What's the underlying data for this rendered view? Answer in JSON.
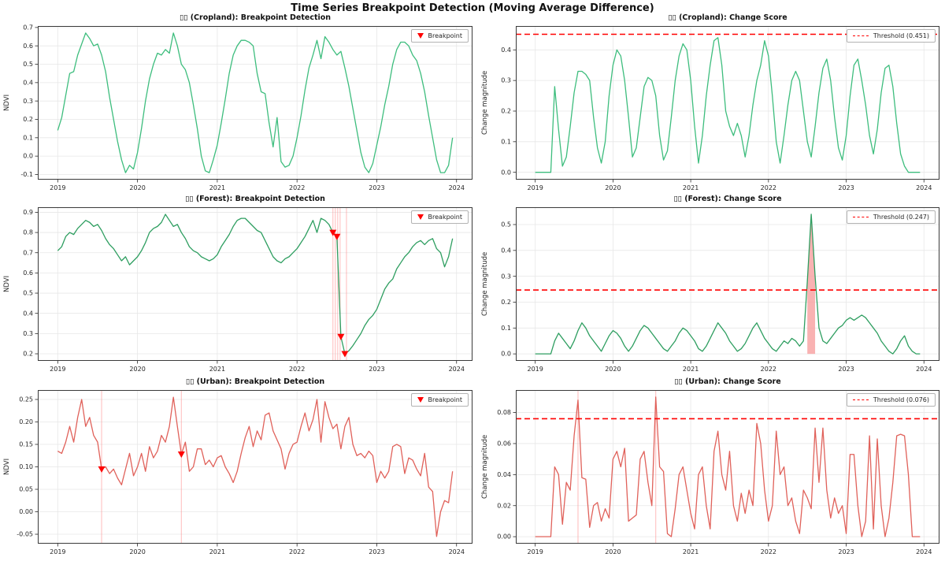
{
  "figure": {
    "suptitle": "Time Series Breakpoint Detection (Moving Average Difference)"
  },
  "colors": {
    "cropland_line": "#3dbd7d",
    "forest_line": "#2e9e60",
    "urban_line": "#e0615a",
    "threshold": "#ff0000",
    "breakpoint_marker": "#ff0000",
    "event_vline": "#ff9090",
    "fill_above": "#f79f9f",
    "grid": "#e7e7e7",
    "spine": "#3a3a3a",
    "tick_text": "#262626"
  },
  "chart_data": [
    {
      "id": "cropland-breakpoint-detection",
      "type": "line",
      "title": "▯▯ (Cropland): Breakpoint Detection",
      "ylabel": "NDVI",
      "legend_label": "Breakpoint",
      "legend_type": "breakpoint",
      "color_key": "cropland_line",
      "xlim": [
        2018.75,
        2024.2
      ],
      "ylim": [
        -0.128,
        0.708
      ],
      "xtick_vals": [
        2019,
        2020,
        2021,
        2022,
        2023,
        2024
      ],
      "xtick_labels": [
        "2019",
        "2020",
        "2021",
        "2022",
        "2023",
        "2024"
      ],
      "ytick_vals": [
        -0.1,
        0.0,
        0.1,
        0.2,
        0.3,
        0.4,
        0.5,
        0.6,
        0.7
      ],
      "ytick_labels": [
        "-0.1",
        "0.0",
        "0.1",
        "0.2",
        "0.3",
        "0.4",
        "0.5",
        "0.6",
        "0.7"
      ],
      "x_start": 2019.0,
      "x_step": 0.05,
      "values": [
        0.14,
        0.21,
        0.33,
        0.45,
        0.46,
        0.55,
        0.61,
        0.67,
        0.64,
        0.6,
        0.61,
        0.55,
        0.46,
        0.32,
        0.2,
        0.08,
        -0.02,
        -0.09,
        -0.05,
        -0.07,
        0.02,
        0.15,
        0.3,
        0.42,
        0.5,
        0.56,
        0.55,
        0.58,
        0.56,
        0.67,
        0.6,
        0.5,
        0.47,
        0.4,
        0.28,
        0.15,
        0.0,
        -0.08,
        -0.09,
        -0.02,
        0.06,
        0.18,
        0.31,
        0.45,
        0.55,
        0.6,
        0.63,
        0.63,
        0.62,
        0.6,
        0.45,
        0.35,
        0.34,
        0.18,
        0.05,
        0.21,
        -0.03,
        -0.06,
        -0.05,
        0.0,
        0.1,
        0.22,
        0.36,
        0.48,
        0.55,
        0.63,
        0.53,
        0.65,
        0.62,
        0.58,
        0.55,
        0.57,
        0.48,
        0.38,
        0.26,
        0.14,
        0.02,
        -0.06,
        -0.09,
        -0.04,
        0.06,
        0.16,
        0.28,
        0.38,
        0.5,
        0.58,
        0.62,
        0.62,
        0.6,
        0.55,
        0.52,
        0.45,
        0.35,
        0.22,
        0.1,
        -0.02,
        -0.09,
        -0.09,
        -0.05,
        0.1
      ],
      "breakpoints": [],
      "vlines": []
    },
    {
      "id": "cropland-change-score",
      "type": "line",
      "title": "▯▯ (Cropland): Change Score",
      "ylabel": "Change magnitude",
      "legend_label": "Threshold (0.451)",
      "legend_type": "threshold",
      "color_key": "cropland_line",
      "threshold": 0.451,
      "xlim": [
        2018.75,
        2024.2
      ],
      "ylim": [
        -0.024,
        0.478
      ],
      "xtick_vals": [
        2019,
        2020,
        2021,
        2022,
        2023,
        2024
      ],
      "xtick_labels": [
        "2019",
        "2020",
        "2021",
        "2022",
        "2023",
        "2024"
      ],
      "ytick_vals": [
        0.0,
        0.1,
        0.2,
        0.3,
        0.4
      ],
      "ytick_labels": [
        "0.0",
        "0.1",
        "0.2",
        "0.3",
        "0.4"
      ],
      "x_start": 2019.0,
      "x_step": 0.05,
      "values": [
        0,
        0,
        0,
        0,
        0,
        0.28,
        0.14,
        0.02,
        0.05,
        0.15,
        0.26,
        0.33,
        0.33,
        0.32,
        0.3,
        0.18,
        0.08,
        0.03,
        0.1,
        0.25,
        0.35,
        0.4,
        0.38,
        0.3,
        0.18,
        0.05,
        0.08,
        0.18,
        0.28,
        0.31,
        0.3,
        0.25,
        0.12,
        0.04,
        0.07,
        0.18,
        0.3,
        0.38,
        0.42,
        0.4,
        0.3,
        0.15,
        0.03,
        0.12,
        0.25,
        0.35,
        0.43,
        0.44,
        0.35,
        0.2,
        0.15,
        0.12,
        0.16,
        0.12,
        0.05,
        0.12,
        0.22,
        0.3,
        0.35,
        0.43,
        0.38,
        0.25,
        0.1,
        0.03,
        0.12,
        0.22,
        0.3,
        0.33,
        0.3,
        0.2,
        0.1,
        0.05,
        0.15,
        0.26,
        0.34,
        0.37,
        0.3,
        0.18,
        0.08,
        0.04,
        0.12,
        0.25,
        0.35,
        0.37,
        0.3,
        0.22,
        0.12,
        0.06,
        0.14,
        0.26,
        0.34,
        0.35,
        0.28,
        0.16,
        0.06,
        0.02,
        0,
        0,
        0,
        0
      ],
      "breakpoints": [],
      "vlines": []
    },
    {
      "id": "forest-breakpoint-detection",
      "type": "line",
      "title": "▯▯ (Forest): Breakpoint Detection",
      "ylabel": "NDVI",
      "legend_label": "Breakpoint",
      "legend_type": "breakpoint",
      "color_key": "forest_line",
      "xlim": [
        2018.75,
        2024.2
      ],
      "ylim": [
        0.165,
        0.925
      ],
      "xtick_vals": [
        2019,
        2020,
        2021,
        2022,
        2023,
        2024
      ],
      "xtick_labels": [
        "2019",
        "2020",
        "2021",
        "2022",
        "2023",
        "2024"
      ],
      "ytick_vals": [
        0.2,
        0.3,
        0.4,
        0.5,
        0.6,
        0.7,
        0.8,
        0.9
      ],
      "ytick_labels": [
        "0.2",
        "0.3",
        "0.4",
        "0.5",
        "0.6",
        "0.7",
        "0.8",
        "0.9"
      ],
      "x_start": 2019.0,
      "x_step": 0.05,
      "values": [
        0.71,
        0.73,
        0.78,
        0.8,
        0.79,
        0.82,
        0.84,
        0.86,
        0.85,
        0.83,
        0.84,
        0.81,
        0.77,
        0.74,
        0.72,
        0.69,
        0.66,
        0.68,
        0.64,
        0.66,
        0.68,
        0.71,
        0.75,
        0.8,
        0.82,
        0.83,
        0.85,
        0.89,
        0.86,
        0.83,
        0.84,
        0.8,
        0.77,
        0.73,
        0.71,
        0.7,
        0.68,
        0.67,
        0.66,
        0.67,
        0.69,
        0.73,
        0.76,
        0.79,
        0.83,
        0.86,
        0.87,
        0.87,
        0.85,
        0.83,
        0.81,
        0.8,
        0.76,
        0.72,
        0.68,
        0.66,
        0.65,
        0.67,
        0.68,
        0.7,
        0.72,
        0.75,
        0.78,
        0.82,
        0.86,
        0.8,
        0.87,
        0.86,
        0.84,
        0.8,
        0.78,
        0.285,
        0.2,
        0.215,
        0.24,
        0.27,
        0.3,
        0.34,
        0.37,
        0.39,
        0.42,
        0.47,
        0.52,
        0.55,
        0.57,
        0.62,
        0.65,
        0.68,
        0.7,
        0.73,
        0.75,
        0.76,
        0.74,
        0.76,
        0.77,
        0.72,
        0.7,
        0.63,
        0.68,
        0.77
      ],
      "breakpoints": [
        [
          2022.45,
          0.8
        ],
        [
          2022.5,
          0.78
        ],
        [
          2022.55,
          0.285
        ],
        [
          2022.6,
          0.2
        ]
      ],
      "vlines": [
        2022.45,
        2022.48,
        2022.51,
        2022.54,
        2022.62
      ]
    },
    {
      "id": "forest-change-score",
      "type": "line",
      "title": "▯▯ (Forest): Change Score",
      "ylabel": "Change magnitude",
      "legend_label": "Threshold (0.247)",
      "legend_type": "threshold",
      "color_key": "forest_line",
      "threshold": 0.247,
      "fill_above_threshold": true,
      "xlim": [
        2018.75,
        2024.2
      ],
      "ylim": [
        -0.027,
        0.567
      ],
      "xtick_vals": [
        2019,
        2020,
        2021,
        2022,
        2023,
        2024
      ],
      "xtick_labels": [
        "2019",
        "2020",
        "2021",
        "2022",
        "2023",
        "2024"
      ],
      "ytick_vals": [
        0.0,
        0.1,
        0.2,
        0.3,
        0.4,
        0.5
      ],
      "ytick_labels": [
        "0.0",
        "0.1",
        "0.2",
        "0.3",
        "0.4",
        "0.5"
      ],
      "x_start": 2019.0,
      "x_step": 0.05,
      "values": [
        0,
        0,
        0,
        0,
        0,
        0.05,
        0.08,
        0.06,
        0.04,
        0.02,
        0.05,
        0.09,
        0.12,
        0.1,
        0.07,
        0.05,
        0.03,
        0.01,
        0.04,
        0.07,
        0.09,
        0.08,
        0.06,
        0.03,
        0.01,
        0.03,
        0.06,
        0.09,
        0.11,
        0.1,
        0.08,
        0.06,
        0.04,
        0.02,
        0.01,
        0.03,
        0.05,
        0.08,
        0.1,
        0.09,
        0.07,
        0.05,
        0.02,
        0.01,
        0.03,
        0.06,
        0.09,
        0.12,
        0.1,
        0.08,
        0.05,
        0.03,
        0.01,
        0.02,
        0.04,
        0.07,
        0.1,
        0.12,
        0.09,
        0.06,
        0.04,
        0.02,
        0.01,
        0.03,
        0.05,
        0.04,
        0.06,
        0.05,
        0.03,
        0.05,
        0.28,
        0.54,
        0.3,
        0.1,
        0.05,
        0.04,
        0.06,
        0.08,
        0.1,
        0.11,
        0.13,
        0.14,
        0.13,
        0.14,
        0.15,
        0.14,
        0.12,
        0.1,
        0.08,
        0.05,
        0.03,
        0.01,
        0.0,
        0.02,
        0.05,
        0.07,
        0.03,
        0.01,
        0.0,
        0.0
      ],
      "breakpoints": [],
      "vlines": []
    },
    {
      "id": "urban-breakpoint-detection",
      "type": "line",
      "title": "▯▯ (Urban): Breakpoint Detection",
      "ylabel": "NDVI",
      "legend_label": "Breakpoint",
      "legend_type": "breakpoint",
      "color_key": "urban_line",
      "xlim": [
        2018.75,
        2024.2
      ],
      "ylim": [
        -0.071,
        0.271
      ],
      "xtick_vals": [
        2019,
        2020,
        2021,
        2022,
        2023,
        2024
      ],
      "xtick_labels": [
        "2019",
        "2020",
        "2021",
        "2022",
        "2023",
        "2024"
      ],
      "ytick_vals": [
        -0.05,
        0.0,
        0.05,
        0.1,
        0.15,
        0.2,
        0.25
      ],
      "ytick_labels": [
        "-0.05",
        "0.00",
        "0.05",
        "0.10",
        "0.15",
        "0.20",
        "0.25"
      ],
      "x_start": 2019.0,
      "x_step": 0.05,
      "values": [
        0.135,
        0.13,
        0.155,
        0.19,
        0.155,
        0.21,
        0.25,
        0.19,
        0.21,
        0.17,
        0.155,
        0.095,
        0.1,
        0.085,
        0.095,
        0.075,
        0.06,
        0.095,
        0.13,
        0.08,
        0.1,
        0.13,
        0.09,
        0.145,
        0.12,
        0.135,
        0.17,
        0.155,
        0.19,
        0.255,
        0.19,
        0.128,
        0.155,
        0.09,
        0.1,
        0.14,
        0.14,
        0.105,
        0.115,
        0.1,
        0.12,
        0.125,
        0.1,
        0.085,
        0.065,
        0.09,
        0.13,
        0.165,
        0.19,
        0.145,
        0.18,
        0.16,
        0.215,
        0.22,
        0.18,
        0.16,
        0.14,
        0.095,
        0.13,
        0.15,
        0.155,
        0.19,
        0.22,
        0.18,
        0.205,
        0.25,
        0.155,
        0.245,
        0.21,
        0.185,
        0.195,
        0.14,
        0.19,
        0.21,
        0.15,
        0.125,
        0.13,
        0.12,
        0.135,
        0.125,
        0.065,
        0.09,
        0.075,
        0.09,
        0.145,
        0.15,
        0.145,
        0.085,
        0.12,
        0.115,
        0.095,
        0.08,
        0.13,
        0.055,
        0.045,
        -0.055,
        0.0,
        0.025,
        0.02,
        0.09
      ],
      "breakpoints": [
        [
          2019.55,
          0.095
        ],
        [
          2020.55,
          0.128
        ]
      ],
      "vlines": [
        2019.55,
        2020.55
      ]
    },
    {
      "id": "urban-change-score",
      "type": "line",
      "title": "▯▯ (Urban): Change Score",
      "ylabel": "Change magnitude",
      "legend_label": "Threshold (0.076)",
      "legend_type": "threshold",
      "color_key": "urban_line",
      "threshold": 0.076,
      "xlim": [
        2018.75,
        2024.2
      ],
      "ylim": [
        -0.0045,
        0.0945
      ],
      "xtick_vals": [
        2019,
        2020,
        2021,
        2022,
        2023,
        2024
      ],
      "xtick_labels": [
        "2019",
        "2020",
        "2021",
        "2022",
        "2023",
        "2024"
      ],
      "ytick_vals": [
        0.0,
        0.02,
        0.04,
        0.06,
        0.08
      ],
      "ytick_labels": [
        "0.00",
        "0.02",
        "0.04",
        "0.06",
        "0.08"
      ],
      "x_start": 2019.0,
      "x_step": 0.05,
      "values": [
        0,
        0,
        0,
        0,
        0,
        0.045,
        0.04,
        0.008,
        0.035,
        0.03,
        0.065,
        0.088,
        0.038,
        0.037,
        0.006,
        0.02,
        0.022,
        0.01,
        0.018,
        0.012,
        0.05,
        0.055,
        0.045,
        0.057,
        0.01,
        0.012,
        0.014,
        0.05,
        0.055,
        0.035,
        0.02,
        0.09,
        0.045,
        0.042,
        0.002,
        0.0,
        0.018,
        0.04,
        0.045,
        0.03,
        0.015,
        0.005,
        0.04,
        0.045,
        0.02,
        0.005,
        0.055,
        0.068,
        0.04,
        0.03,
        0.055,
        0.02,
        0.01,
        0.028,
        0.015,
        0.03,
        0.02,
        0.073,
        0.06,
        0.03,
        0.01,
        0.02,
        0.068,
        0.04,
        0.045,
        0.02,
        0.025,
        0.01,
        0.002,
        0.03,
        0.025,
        0.018,
        0.07,
        0.035,
        0.07,
        0.03,
        0.012,
        0.025,
        0.015,
        0.02,
        0.002,
        0.053,
        0.053,
        0.02,
        0.0,
        0.01,
        0.065,
        0.005,
        0.063,
        0.02,
        0.0,
        0.012,
        0.035,
        0.065,
        0.066,
        0.065,
        0.04,
        0.0,
        0.0,
        0.0
      ],
      "breakpoints": [],
      "vlines": [
        2019.55,
        2020.55
      ]
    }
  ]
}
